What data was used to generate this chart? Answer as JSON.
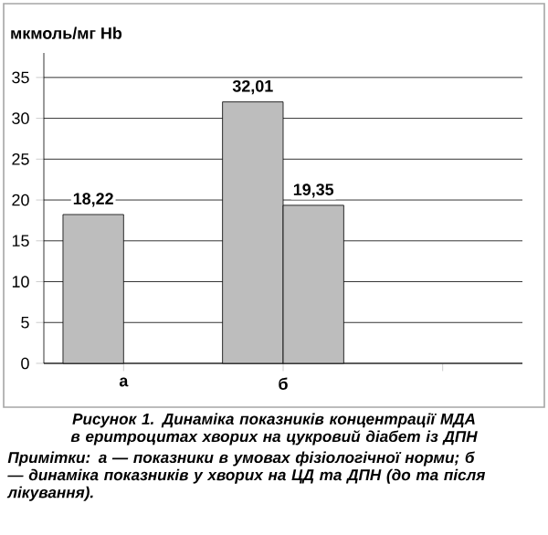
{
  "chart_data": {
    "type": "bar",
    "ylabel": "мкмоль/мг Hb",
    "categories": [
      "а",
      "б",
      null
    ],
    "series": [
      {
        "color": "#bdbdbd",
        "values": [
          18.22,
          32.01,
          null
        ],
        "value_labels": [
          "18,22",
          "32,01",
          null
        ]
      },
      {
        "color": "#bdbdbd",
        "values": [
          null,
          19.35,
          null
        ],
        "value_labels": [
          null,
          "19,35",
          null
        ]
      }
    ],
    "ylim": [
      0,
      38
    ],
    "yticks": [
      0,
      5,
      10,
      15,
      20,
      25,
      30,
      35
    ],
    "grid": "y",
    "annotations": [
      "Рисунок 1. Динаміка показників концентрації МДА в еритроцитах хворих на цукровий діабет із ДПН",
      "Примітки: а — показники в умовах фізіологічної норми; б — динаміка показників у хворих на ЦД та ДПН (до та після лікування)."
    ]
  }
}
